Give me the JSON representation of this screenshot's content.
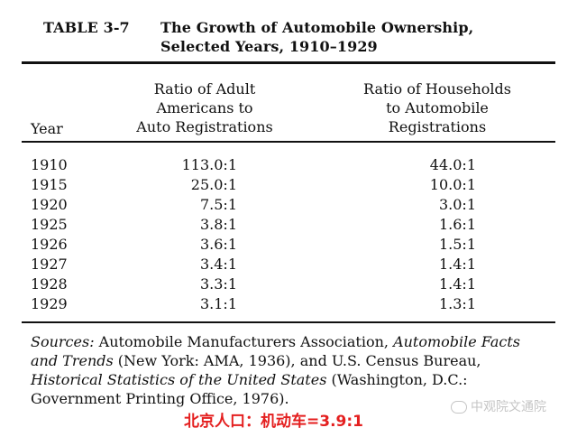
{
  "title": {
    "label": "TABLE 3-7",
    "line1": "The Growth of Automobile Ownership,",
    "line2": "Selected Years, 1910–1929"
  },
  "table": {
    "headers": {
      "year": "Year",
      "adult_lines": [
        "Ratio of Adult",
        "Americans to",
        "Auto Registrations"
      ],
      "household_lines": [
        "Ratio of Households",
        "to Automobile",
        "Registrations"
      ]
    },
    "rows": [
      {
        "year": "1910",
        "adult": "113.0:1",
        "household": "44.0:1"
      },
      {
        "year": "1915",
        "adult": "25.0:1",
        "household": "10.0:1"
      },
      {
        "year": "1920",
        "adult": "7.5:1",
        "household": "3.0:1"
      },
      {
        "year": "1925",
        "adult": "3.8:1",
        "household": "1.6:1"
      },
      {
        "year": "1926",
        "adult": "3.6:1",
        "household": "1.5:1"
      },
      {
        "year": "1927",
        "adult": "3.4:1",
        "household": "1.4:1"
      },
      {
        "year": "1928",
        "adult": "3.3:1",
        "household": "1.4:1"
      },
      {
        "year": "1929",
        "adult": "3.1:1",
        "household": "1.3:1"
      }
    ]
  },
  "sources": {
    "label": "Sources:",
    "text1": " Automobile Manufacturers Association, ",
    "italic1": "Automobile Facts and Trends",
    "text2": " (New York: AMA, 1936), and U.S. Census Bureau, ",
    "italic2": "Historical Statistics of the United States",
    "text3": " (Washington, D.C.: Government Printing Office, 1976)."
  },
  "overlay_text": "北京人口：机动车=3.9:1",
  "watermark": {
    "text": "中观院文通院",
    "icon": "wechat-icon"
  },
  "colors": {
    "overlay": "#e41f1f"
  }
}
